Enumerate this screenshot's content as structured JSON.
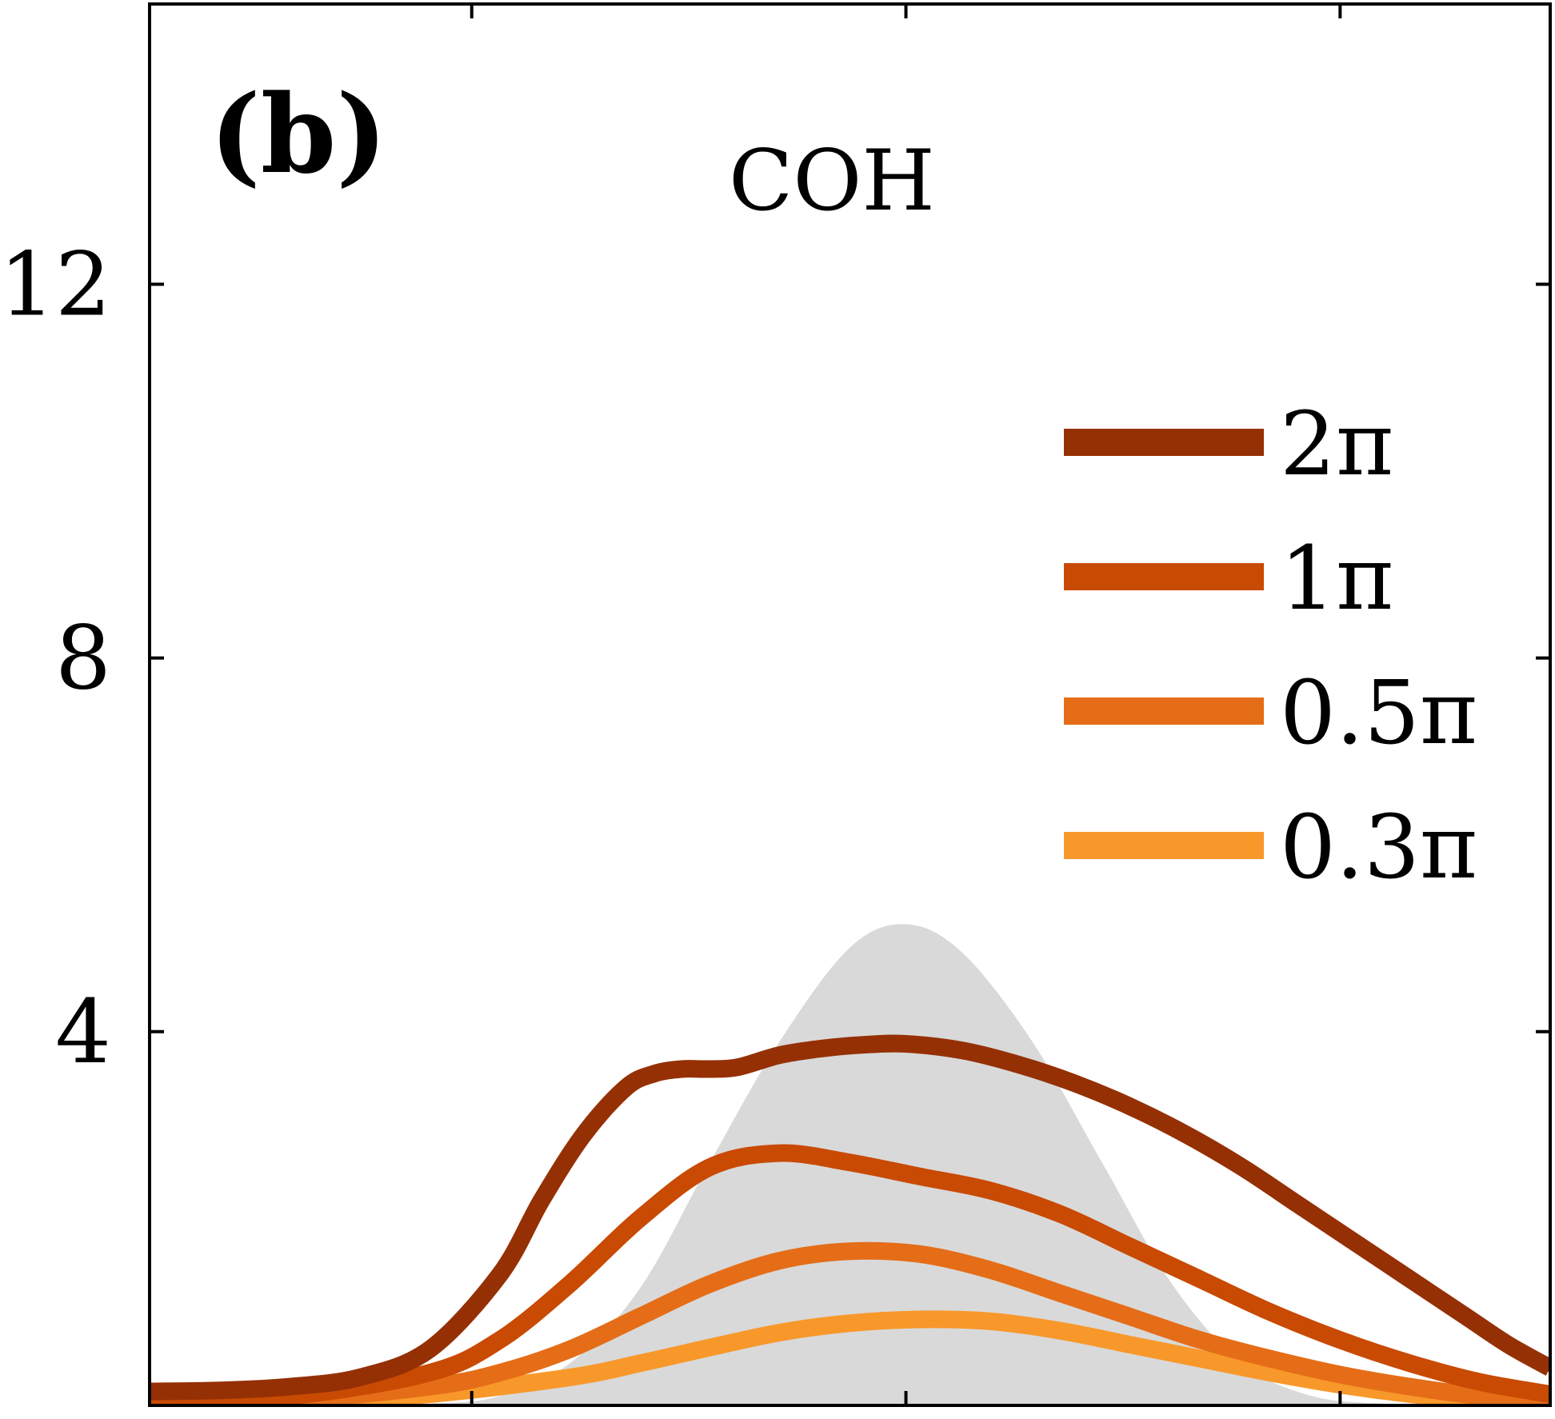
{
  "chart_data": {
    "type": "line",
    "panel_label": "(b)",
    "title": "COH",
    "xlabel": "",
    "ylabel": "",
    "xlim": [
      0,
      1
    ],
    "ylim": [
      0,
      15
    ],
    "y_ticks": [
      4,
      8,
      12
    ],
    "y_tick_labels": [
      "4",
      "8",
      "12"
    ],
    "x_ticks": [
      0.23,
      0.54,
      0.85
    ],
    "legend_position": "right",
    "shaded": {
      "name": "reference distribution",
      "color": "#d9d9d9",
      "x": [
        0.0,
        0.1,
        0.2,
        0.25,
        0.3,
        0.35,
        0.4,
        0.45,
        0.5,
        0.54,
        0.58,
        0.63,
        0.68,
        0.73,
        0.78,
        0.83,
        0.88,
        0.93,
        1.0
      ],
      "y": [
        0.0,
        0.0,
        0.02,
        0.1,
        0.45,
        1.25,
        2.6,
        3.9,
        4.9,
        5.15,
        4.85,
        3.9,
        2.6,
        1.3,
        0.45,
        0.1,
        0.02,
        0.0,
        0.0
      ]
    },
    "series": [
      {
        "name": "2π",
        "color": "#953005",
        "width": 22,
        "x": [
          0.0,
          0.05,
          0.1,
          0.15,
          0.2,
          0.25,
          0.28,
          0.31,
          0.34,
          0.36,
          0.38,
          0.4,
          0.42,
          0.45,
          0.48,
          0.51,
          0.54,
          0.58,
          0.62,
          0.66,
          0.7,
          0.74,
          0.78,
          0.82,
          0.86,
          0.9,
          0.94,
          0.97,
          1.0
        ],
        "y": [
          0.15,
          0.16,
          0.2,
          0.3,
          0.6,
          1.4,
          2.2,
          2.9,
          3.4,
          3.55,
          3.6,
          3.6,
          3.62,
          3.75,
          3.82,
          3.86,
          3.87,
          3.8,
          3.65,
          3.45,
          3.2,
          2.9,
          2.55,
          2.15,
          1.75,
          1.35,
          0.95,
          0.65,
          0.4
        ]
      },
      {
        "name": "1π",
        "color": "#c94a03",
        "width": 22,
        "x": [
          0.0,
          0.1,
          0.2,
          0.25,
          0.3,
          0.35,
          0.4,
          0.45,
          0.5,
          0.55,
          0.6,
          0.65,
          0.7,
          0.75,
          0.8,
          0.85,
          0.9,
          0.95,
          1.0
        ],
        "y": [
          0.05,
          0.1,
          0.35,
          0.7,
          1.3,
          2.0,
          2.55,
          2.7,
          2.6,
          2.45,
          2.3,
          2.05,
          1.7,
          1.35,
          1.0,
          0.7,
          0.45,
          0.25,
          0.12
        ]
      },
      {
        "name": "0.5π",
        "color": "#e56d17",
        "width": 22,
        "x": [
          0.0,
          0.1,
          0.2,
          0.25,
          0.3,
          0.35,
          0.4,
          0.45,
          0.5,
          0.55,
          0.6,
          0.65,
          0.7,
          0.75,
          0.8,
          0.85,
          0.9,
          0.95,
          1.0
        ],
        "y": [
          0.02,
          0.06,
          0.2,
          0.35,
          0.6,
          0.95,
          1.3,
          1.55,
          1.65,
          1.62,
          1.45,
          1.2,
          0.95,
          0.7,
          0.5,
          0.33,
          0.2,
          0.1,
          0.05
        ]
      },
      {
        "name": "0.3π",
        "color": "#f8982a",
        "width": 22,
        "x": [
          0.0,
          0.1,
          0.2,
          0.3,
          0.35,
          0.4,
          0.45,
          0.5,
          0.55,
          0.6,
          0.65,
          0.7,
          0.75,
          0.8,
          0.85,
          0.9,
          0.95,
          1.0
        ],
        "y": [
          0.0,
          0.03,
          0.12,
          0.3,
          0.45,
          0.62,
          0.78,
          0.88,
          0.92,
          0.9,
          0.8,
          0.65,
          0.5,
          0.35,
          0.22,
          0.12,
          0.05,
          0.0
        ]
      }
    ]
  }
}
